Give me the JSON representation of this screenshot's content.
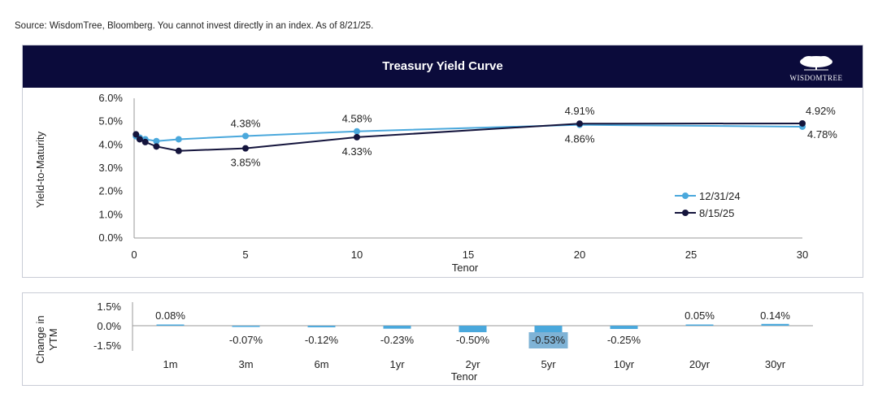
{
  "source_note": "Source: WisdomTree, Bloomberg. You cannot invest directly in an index. As of 8/21/25.",
  "header": {
    "title": "Treasury Yield Curve",
    "logo_text": "WISDOMTREE"
  },
  "colors": {
    "header_bg": "#0b0b3b",
    "series_1231": "#4aa8dc",
    "series_0815": "#14143c",
    "bar": "#4aa8dc",
    "bar_highlight": "#7fb3d6"
  },
  "chart_data": [
    {
      "type": "line",
      "title": "Treasury Yield Curve",
      "xlabel": "Tenor",
      "ylabel": "Yield-to-Maturity",
      "xlim": [
        0,
        30
      ],
      "ylim": [
        0,
        6
      ],
      "x_ticks": [
        "0",
        "5",
        "10",
        "15",
        "20",
        "25",
        "30"
      ],
      "y_ticks": [
        "0.0%",
        "1.0%",
        "2.0%",
        "3.0%",
        "4.0%",
        "5.0%",
        "6.0%"
      ],
      "series": [
        {
          "name": "12/31/24",
          "x": [
            0.083,
            0.25,
            0.5,
            1,
            2,
            5,
            10,
            20,
            30
          ],
          "values": [
            4.37,
            4.31,
            4.24,
            4.16,
            4.24,
            4.38,
            4.58,
            4.86,
            4.78
          ]
        },
        {
          "name": "8/15/25",
          "x": [
            0.083,
            0.25,
            0.5,
            1,
            2,
            5,
            10,
            20,
            30
          ],
          "values": [
            4.45,
            4.24,
            4.12,
            3.93,
            3.74,
            3.85,
            4.33,
            4.91,
            4.92
          ]
        }
      ],
      "annotations": [
        {
          "text": "4.38%",
          "series": 0,
          "point": 5,
          "pos": "above"
        },
        {
          "text": "3.85%",
          "series": 1,
          "point": 5,
          "pos": "below"
        },
        {
          "text": "4.58%",
          "series": 0,
          "point": 6,
          "pos": "above"
        },
        {
          "text": "4.33%",
          "series": 1,
          "point": 6,
          "pos": "below"
        },
        {
          "text": "4.91%",
          "series": 1,
          "point": 7,
          "pos": "above"
        },
        {
          "text": "4.86%",
          "series": 0,
          "point": 7,
          "pos": "below"
        },
        {
          "text": "4.92%",
          "series": 1,
          "point": 8,
          "pos": "above-right"
        },
        {
          "text": "4.78%",
          "series": 0,
          "point": 8,
          "pos": "below-right"
        }
      ],
      "legend": {
        "position": "right",
        "entries": [
          "12/31/24",
          "8/15/25"
        ]
      }
    },
    {
      "type": "bar",
      "xlabel": "Tenor",
      "ylabel": "Change in YTM",
      "ylim": [
        -1.5,
        1.5
      ],
      "y_ticks": [
        "1.5%",
        "0.0%",
        "-1.5%"
      ],
      "categories": [
        "1m",
        "3m",
        "6m",
        "1yr",
        "2yr",
        "5yr",
        "10yr",
        "20yr",
        "30yr"
      ],
      "values": [
        0.08,
        -0.07,
        -0.12,
        -0.23,
        -0.5,
        -0.53,
        -0.25,
        0.05,
        0.14
      ],
      "labels": [
        "0.08%",
        "-0.07%",
        "-0.12%",
        "-0.23%",
        "-0.50%",
        "-0.53%",
        "-0.25%",
        "0.05%",
        "0.14%"
      ],
      "highlight_index": 5
    }
  ]
}
